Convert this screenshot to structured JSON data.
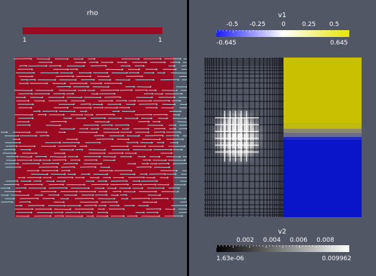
{
  "window": {
    "divider_color": "#000000",
    "background_color": "#525766"
  },
  "left_view": {
    "scalar_bar": {
      "title": "rho",
      "min_label": "1",
      "max_label": "1",
      "color": "#9b0a20"
    },
    "field": {
      "color": "#9b0a20",
      "glyph_color": "#a8d4dc",
      "glyph_kind": "arrow-glyphs"
    }
  },
  "right_view": {
    "scalar_bar_v1": {
      "title": "v1",
      "ticks": [
        "-0.5",
        "-0.25",
        "0",
        "0.25",
        "0.5"
      ],
      "tick_values": [
        -0.5,
        -0.25,
        0,
        0.25,
        0.5
      ],
      "min_value": -0.645,
      "max_value": 0.645,
      "min_label": "-0.645",
      "max_label": "0.645",
      "color_low": "#1a1aff",
      "color_mid": "#ffffff",
      "color_high": "#e6e600"
    },
    "field_v1": {
      "top_color": "#c8c000",
      "bottom_color": "#0a14c8"
    },
    "mesh": {
      "line_color": "#000000",
      "highlight_color": "#ffffff"
    },
    "scalar_bar_v2": {
      "title": "v2",
      "ticks": [
        "0.002",
        "0.004",
        "0.006",
        "0.008"
      ],
      "tick_values": [
        0.002,
        0.004,
        0.006,
        0.008
      ],
      "min_value": 1.63e-06,
      "max_value": 0.009962,
      "min_label": "1.63e-06",
      "max_label": "0.009962",
      "color_low": "#000000",
      "color_high": "#ffffff"
    }
  }
}
